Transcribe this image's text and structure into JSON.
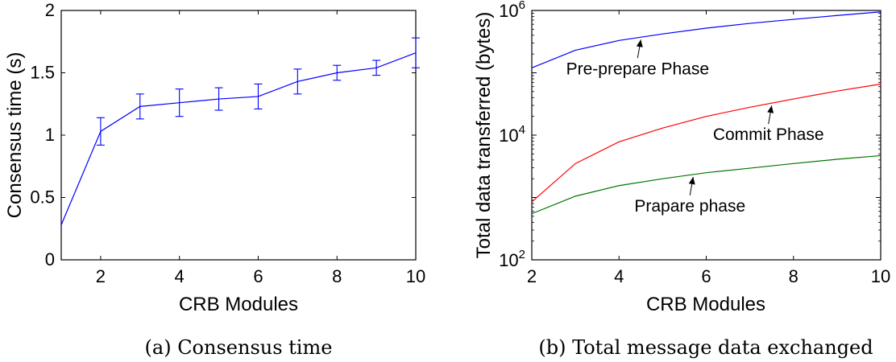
{
  "chart_data": [
    {
      "type": "line",
      "caption": "(a) Consensus time",
      "xlabel": "CRB Modules",
      "ylabel": "Consensus time (s)",
      "xlim": [
        1,
        10
      ],
      "ylim": [
        0,
        2
      ],
      "xticks": [
        2,
        4,
        6,
        8,
        10
      ],
      "yticks": [
        0,
        0.5,
        1,
        1.5,
        2
      ],
      "xtick_labels": [
        "2",
        "4",
        "6",
        "8",
        "10"
      ],
      "ytick_labels": [
        "0",
        "0.5",
        "1",
        "1.5",
        "2"
      ],
      "grid": false,
      "color": "#0000ff",
      "series": [
        {
          "x": [
            1,
            2,
            3,
            4,
            5,
            6,
            7,
            8,
            9,
            10
          ],
          "y": [
            0.28,
            1.03,
            1.23,
            1.26,
            1.29,
            1.31,
            1.43,
            1.5,
            1.54,
            1.66
          ],
          "err": [
            0.0,
            0.11,
            0.1,
            0.11,
            0.09,
            0.1,
            0.1,
            0.06,
            0.06,
            0.12
          ]
        }
      ]
    },
    {
      "type": "line",
      "caption": "(b) Total message data exchanged",
      "xlabel": "CRB Modules",
      "ylabel": "Total data transferred (bytes)",
      "xlim": [
        2,
        10
      ],
      "ylim": [
        100,
        1000000
      ],
      "yscale": "log",
      "xticks": [
        2,
        4,
        6,
        8,
        10
      ],
      "xtick_labels": [
        "2",
        "4",
        "6",
        "8",
        "10"
      ],
      "yticks": [
        100,
        10000,
        1000000
      ],
      "ytick_base": "10",
      "ytick_exponents": [
        "2",
        "4",
        "6"
      ],
      "grid": false,
      "series": [
        {
          "name": "Pre-prepare Phase",
          "color": "#0000ff",
          "x": [
            2,
            3,
            4,
            5,
            6,
            7,
            8,
            9,
            10
          ],
          "y": [
            120000,
            230000,
            330000,
            420000,
            520000,
            620000,
            720000,
            830000,
            950000
          ]
        },
        {
          "name": "Commit Phase",
          "color": "#ff0000",
          "x": [
            2,
            3,
            4,
            5,
            6,
            7,
            8,
            9,
            10
          ],
          "y": [
            850,
            3500,
            7800,
            13000,
            20000,
            28000,
            38000,
            51000,
            66000
          ]
        },
        {
          "name": "Prapare phase",
          "color": "#007700",
          "x": [
            2,
            3,
            4,
            5,
            6,
            7,
            8,
            9,
            10
          ],
          "y": [
            550,
            1050,
            1550,
            2000,
            2500,
            2950,
            3500,
            4100,
            4700
          ]
        }
      ],
      "annotations": [
        {
          "text": "Pre-prepare Phase",
          "series": 0,
          "x": 4.5
        },
        {
          "text": "Commit Phase",
          "series": 1,
          "x": 7.5
        },
        {
          "text": "Prapare phase",
          "series": 2,
          "x": 5.7
        }
      ]
    }
  ]
}
